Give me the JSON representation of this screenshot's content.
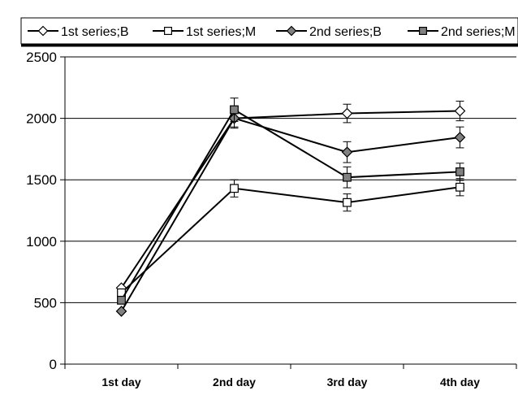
{
  "chart_data": {
    "type": "line",
    "categories": [
      "1st day",
      "2nd day",
      "3rd day",
      "4th day"
    ],
    "ylim": [
      0,
      2500
    ],
    "yticks": [
      0,
      500,
      1000,
      1500,
      2000,
      2500
    ],
    "grid": "horizontal",
    "legend_position": "top",
    "series": [
      {
        "name": "1st series;B",
        "marker": "diamond-open",
        "values": [
          620,
          2000,
          2040,
          2060
        ],
        "error": [
          0,
          70,
          75,
          80
        ]
      },
      {
        "name": "1st series;M",
        "marker": "square-open",
        "values": [
          580,
          1430,
          1315,
          1440
        ],
        "error": [
          0,
          70,
          70,
          70
        ]
      },
      {
        "name": "2nd series;B",
        "marker": "diamond-filled",
        "values": [
          430,
          2000,
          1725,
          1845
        ],
        "error": [
          0,
          80,
          85,
          85
        ]
      },
      {
        "name": "2nd series;M",
        "marker": "square-filled",
        "values": [
          520,
          2070,
          1520,
          1565
        ],
        "error": [
          0,
          95,
          85,
          70
        ]
      }
    ],
    "colors": {
      "line": "#000000",
      "filled_marker": "#808080",
      "open_marker": "#ffffff",
      "grid": "#000000"
    }
  }
}
